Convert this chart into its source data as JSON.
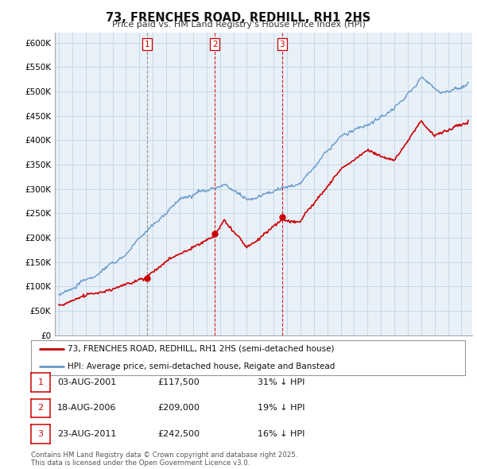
{
  "title": "73, FRENCHES ROAD, REDHILL, RH1 2HS",
  "subtitle": "Price paid vs. HM Land Registry's House Price Index (HPI)",
  "ylim": [
    0,
    620000
  ],
  "yticks": [
    0,
    50000,
    100000,
    150000,
    200000,
    250000,
    300000,
    350000,
    400000,
    450000,
    500000,
    550000,
    600000
  ],
  "ytick_labels": [
    "£0",
    "£50K",
    "£100K",
    "£150K",
    "£200K",
    "£250K",
    "£300K",
    "£350K",
    "£400K",
    "£450K",
    "£500K",
    "£550K",
    "£600K"
  ],
  "hpi_color": "#6699cc",
  "price_color": "#cc0000",
  "chart_bg": "#e8f0f8",
  "sale_year_nums": [
    2001.59,
    2006.63,
    2011.64
  ],
  "sale_prices": [
    117500,
    209000,
    242500
  ],
  "sale_labels": [
    "1",
    "2",
    "3"
  ],
  "sale_vline_styles": [
    "dashed_grey",
    "dashed_red",
    "dashed_red"
  ],
  "legend_label_price": "73, FRENCHES ROAD, REDHILL, RH1 2HS (semi-detached house)",
  "legend_label_hpi": "HPI: Average price, semi-detached house, Reigate and Banstead",
  "table_rows": [
    [
      "1",
      "03-AUG-2001",
      "£117,500",
      "31% ↓ HPI"
    ],
    [
      "2",
      "18-AUG-2006",
      "£209,000",
      "19% ↓ HPI"
    ],
    [
      "3",
      "23-AUG-2011",
      "£242,500",
      "16% ↓ HPI"
    ]
  ],
  "footnote": "Contains HM Land Registry data © Crown copyright and database right 2025.\nThis data is licensed under the Open Government Licence v3.0.",
  "background_color": "#ffffff",
  "grid_color": "#c8d8e8",
  "xlim_start": 1994.7,
  "xlim_end": 2025.8
}
